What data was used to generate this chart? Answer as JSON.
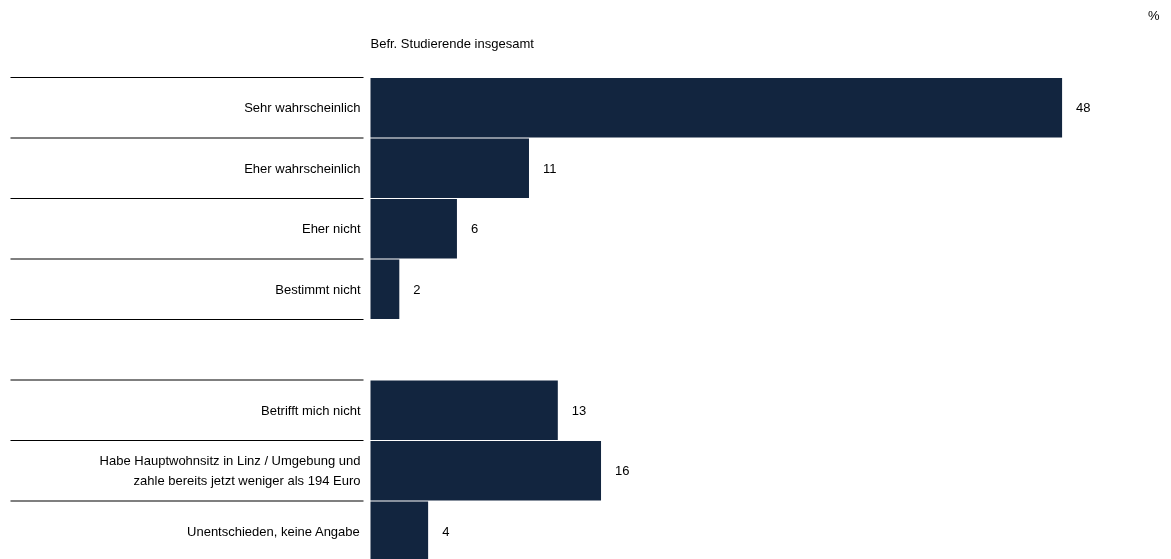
{
  "chart_data": {
    "type": "bar",
    "orientation": "horizontal",
    "title": "Befr. Studierende insgesamt",
    "annotations": [
      "%"
    ],
    "categories": [
      "Sehr wahrscheinlich",
      "Eher wahrscheinlich",
      "Eher nicht",
      "Bestimmt nicht",
      null,
      "Betrifft mich nicht",
      "Habe Hauptwohnsitz in Linz / Umgebung und\nzahle bereits jetzt weniger als 194 Euro",
      "Unentschieden, keine Angabe"
    ],
    "values": [
      48,
      11,
      6,
      2,
      null,
      13,
      16,
      4
    ],
    "color": "#12253f",
    "data_labels": true
  }
}
